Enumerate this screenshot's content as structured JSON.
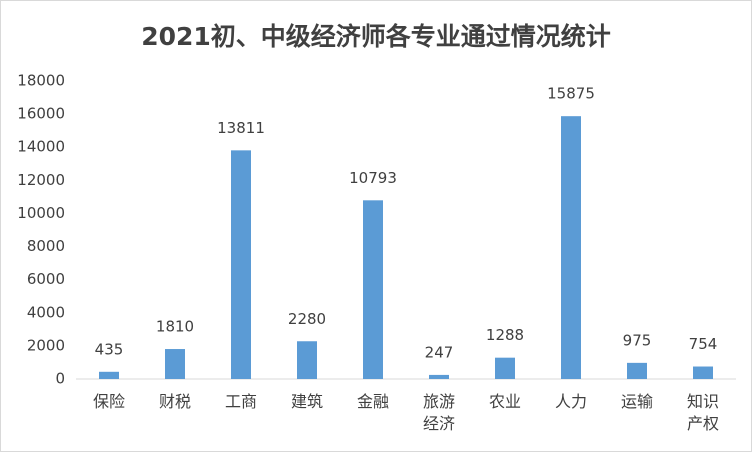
{
  "chart_data": {
    "type": "bar",
    "title": "2021初、中级经济师各专业通过情况统计",
    "categories": [
      "保险",
      "财税",
      "工商",
      "建筑",
      "金融",
      "旅游经济",
      "农业",
      "人力",
      "运输",
      "知识产权"
    ],
    "values": [
      435,
      1810,
      13811,
      2280,
      10793,
      247,
      1288,
      15875,
      975,
      754
    ],
    "color": "#5b9bd5",
    "ylim": [
      0,
      18000
    ],
    "yticks": [
      0,
      2000,
      4000,
      6000,
      8000,
      10000,
      12000,
      14000,
      16000,
      18000
    ],
    "grid": false
  }
}
